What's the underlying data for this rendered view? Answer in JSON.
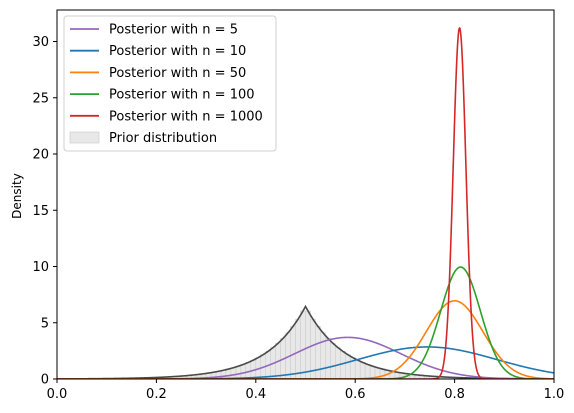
{
  "chart_data": {
    "type": "line",
    "title": "",
    "xlabel": "",
    "ylabel": "Density",
    "xlim": [
      0.0,
      1.0
    ],
    "ylim": [
      0,
      32.8
    ],
    "x_ticks": [
      "0.0",
      "0.2",
      "0.4",
      "0.6",
      "0.8",
      "1.0"
    ],
    "y_ticks": [
      "0",
      "5",
      "10",
      "15",
      "20",
      "25",
      "30"
    ],
    "grid": false,
    "legend_position": "upper-left",
    "series": [
      {
        "name": "Posterior with $n = 5$",
        "legend_label": "Posterior with n = 5",
        "n": 5,
        "color": "#9467bd",
        "peak_x": 0.585,
        "peak_y": 3.7,
        "shape": "smooth unimodal, sd about 0.107"
      },
      {
        "name": "Posterior with $n = 10$",
        "legend_label": "Posterior with n = 10",
        "n": 10,
        "color": "#1f77b4",
        "peak_x": 0.745,
        "peak_y": 2.85,
        "shape": "smooth unimodal, sd about 0.14"
      },
      {
        "name": "Posterior with $n = 50$",
        "legend_label": "Posterior with n = 50",
        "n": 50,
        "color": "#ff7f0e",
        "peak_x": 0.8,
        "peak_y": 6.95,
        "shape": "smooth unimodal, sd about 0.057"
      },
      {
        "name": "Posterior with $n = 100$",
        "legend_label": "Posterior with n = 100",
        "n": 100,
        "color": "#2ca02c",
        "peak_x": 0.812,
        "peak_y": 9.95,
        "shape": "smooth unimodal, sd about 0.040"
      },
      {
        "name": "Posterior with $n = 1000$",
        "legend_label": "Posterior with n = 1000",
        "n": 1000,
        "color": "#d62728",
        "peak_x": 0.81,
        "peak_y": 31.2,
        "shape": "sharp unimodal, sd about 0.0128"
      }
    ],
    "prior": {
      "name": "Prior distribution",
      "legend_label": "Prior distribution",
      "fill_color": "#e8e8e8",
      "edge_color": "#c8c8c8",
      "curve_color": "#4a4a4a",
      "peak_x": 0.5,
      "peak_y": 6.45,
      "shape": "Laplace-like peak at 0.5, decay scale about 0.078"
    }
  }
}
